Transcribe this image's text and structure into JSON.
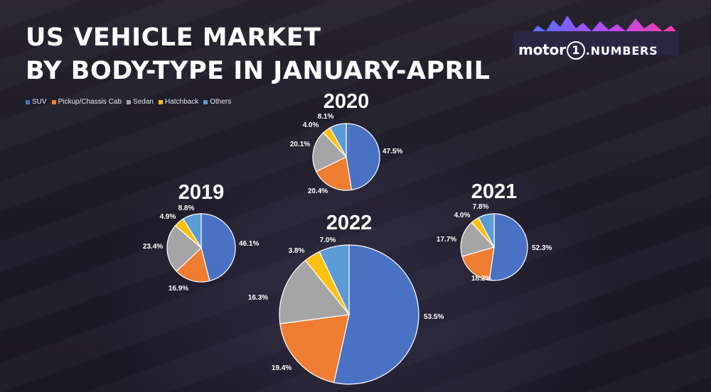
{
  "title_lines": [
    "US VEHICLE MARKET",
    "BY BODY-TYPE IN JANUARY-APRIL"
  ],
  "logo": {
    "motor": "motor",
    "one": "1",
    "numbers": ".NUMBERS"
  },
  "colors": {
    "SUV": "#4a72c4",
    "Pickup/Chassis Cab": "#ee7d31",
    "Sedan": "#a5a5a5",
    "Hatchback": "#fdc010",
    "Others": "#5b9bd6"
  },
  "legend": [
    "SUV",
    "Pickup/Chassis Cab",
    "Sedan",
    "Hatchback",
    "Others"
  ],
  "chart_data": [
    {
      "type": "pie",
      "title": "2020",
      "labels": [
        "SUV",
        "Pickup/Chassis Cab",
        "Sedan",
        "Hatchback",
        "Others"
      ],
      "values": [
        47.5,
        20.4,
        20.1,
        4.0,
        8.1
      ],
      "data_labels": [
        "47.5%",
        "20.4%",
        "20.1%",
        "4.0%",
        "8.1%"
      ]
    },
    {
      "type": "pie",
      "title": "2019",
      "labels": [
        "SUV",
        "Pickup/Chassis Cab",
        "Sedan",
        "Hatchback",
        "Others"
      ],
      "values": [
        46.1,
        16.9,
        23.4,
        4.9,
        8.8
      ],
      "data_labels": [
        "46.1%",
        "16.9%",
        "23.4%",
        "4.9%",
        "8.8%"
      ]
    },
    {
      "type": "pie",
      "title": "2021",
      "labels": [
        "SUV",
        "Pickup/Chassis Cab",
        "Sedan",
        "Hatchback",
        "Others"
      ],
      "values": [
        52.3,
        18.2,
        17.7,
        4.0,
        7.8
      ],
      "data_labels": [
        "52.3%",
        "18.2%",
        "17.7%",
        "4.0%",
        "7.8%"
      ]
    },
    {
      "type": "pie",
      "title": "2022",
      "labels": [
        "SUV",
        "Pickup/Chassis Cab",
        "Sedan",
        "Hatchback",
        "Others"
      ],
      "values": [
        53.5,
        19.4,
        16.3,
        3.8,
        7.0
      ],
      "data_labels": [
        "53.5%",
        "19.4%",
        "16.3%",
        "3.8%",
        "7.0%"
      ]
    }
  ]
}
